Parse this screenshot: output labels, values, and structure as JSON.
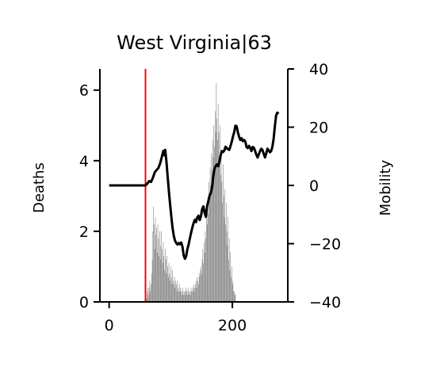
{
  "chart_data": {
    "type": "bar+line",
    "title": "West Virginia|63",
    "x": {
      "label": "",
      "range": [
        -15,
        290
      ],
      "ticks": [
        0,
        200
      ]
    },
    "y_left": {
      "label": "Deaths",
      "range": [
        0,
        6.6
      ],
      "ticks": [
        0,
        2,
        4,
        6
      ]
    },
    "y_right": {
      "label": "Mobility",
      "range": [
        -40,
        40
      ],
      "ticks": [
        -40,
        -20,
        0,
        20,
        40
      ]
    },
    "vline": {
      "x": 59,
      "color": "#ff0000"
    },
    "deaths": {
      "color": "#808080",
      "x_start": 45,
      "values": [
        0,
        0,
        0,
        0,
        0,
        0,
        0,
        0,
        0,
        0,
        0,
        0,
        0,
        0,
        0.1,
        0.2,
        0.1,
        0.3,
        0.4,
        0.2,
        0.4,
        0.6,
        0.3,
        0.5,
        0.8,
        1.2,
        2.0,
        2.7,
        2.2,
        1.5,
        2.4,
        1.9,
        2.1,
        1.4,
        2.2,
        1.8,
        1.3,
        2.0,
        1.6,
        1.2,
        2.0,
        1.5,
        1.1,
        1.7,
        1.3,
        0.9,
        1.5,
        1.2,
        0.8,
        1.3,
        1.0,
        0.7,
        1.1,
        0.8,
        0.6,
        1.0,
        0.7,
        0.5,
        0.9,
        0.6,
        0.5,
        0.7,
        0.4,
        0.6,
        0.5,
        0.3,
        0.6,
        0.4,
        0.3,
        0.5,
        0.3,
        0.4,
        0.3,
        0.2,
        0.4,
        0.3,
        0.2,
        0.3,
        0.2,
        0.3,
        0.4,
        0.3,
        0.2,
        0.4,
        0.3,
        0.2,
        0.3,
        0.2,
        0.4,
        0.3,
        0.3,
        0.4,
        0.5,
        0.3,
        0.4,
        0.5,
        0.6,
        0.4,
        0.7,
        0.6,
        0.5,
        0.8,
        0.7,
        0.9,
        1.0,
        0.8,
        1.2,
        1.5,
        1.1,
        1.7,
        1.4,
        2.0,
        1.8,
        2.4,
        2.2,
        2.8,
        2.5,
        3.4,
        2.9,
        3.8,
        3.3,
        4.2,
        3.7,
        4.6,
        4.1,
        5.0,
        4.4,
        5.4,
        4.8,
        6.2,
        5.2,
        4.6,
        5.6,
        4.8,
        4.0,
        5.0,
        3.6,
        4.2,
        3.4,
        2.8,
        3.9,
        3.0,
        2.4,
        3.2,
        2.2,
        2.8,
        2.0,
        1.6,
        2.4,
        1.2,
        1.8,
        0.9,
        1.4,
        0.7,
        1.0,
        0.5,
        0.6,
        0.3,
        0.3,
        0.2,
        0.2
      ]
    },
    "mobility": {
      "color": "#000000",
      "points": [
        [
          0,
          0
        ],
        [
          59,
          0
        ],
        [
          62,
          0.6
        ],
        [
          65,
          1.5
        ],
        [
          68,
          1.2
        ],
        [
          71,
          2.6
        ],
        [
          74,
          4.5
        ],
        [
          77,
          5.3
        ],
        [
          80,
          6.0
        ],
        [
          83,
          7.7
        ],
        [
          86,
          10.2
        ],
        [
          88,
          11.9
        ],
        [
          90,
          10.3
        ],
        [
          91,
          12.2
        ],
        [
          93,
          8.2
        ],
        [
          95,
          3.0
        ],
        [
          97,
          -2.1
        ],
        [
          99,
          -6.6
        ],
        [
          101,
          -10.8
        ],
        [
          103,
          -14.7
        ],
        [
          105,
          -17.4
        ],
        [
          107,
          -19.0
        ],
        [
          109,
          -19.8
        ],
        [
          111,
          -20.3
        ],
        [
          113,
          -19.8
        ],
        [
          115,
          -20.2
        ],
        [
          117,
          -19.6
        ],
        [
          119,
          -21.0
        ],
        [
          121,
          -24.0
        ],
        [
          123,
          -25.2
        ],
        [
          125,
          -24.3
        ],
        [
          127,
          -21.9
        ],
        [
          129,
          -20.3
        ],
        [
          131,
          -18.2
        ],
        [
          133,
          -16.3
        ],
        [
          135,
          -14.5
        ],
        [
          137,
          -13.0
        ],
        [
          139,
          -11.8
        ],
        [
          141,
          -12.6
        ],
        [
          143,
          -11.0
        ],
        [
          145,
          -10.4
        ],
        [
          147,
          -11.9
        ],
        [
          149,
          -10.6
        ],
        [
          151,
          -8.1
        ],
        [
          153,
          -7.2
        ],
        [
          155,
          -9.4
        ],
        [
          157,
          -10.8
        ],
        [
          159,
          -7.1
        ],
        [
          161,
          -5.4
        ],
        [
          163,
          -3.5
        ],
        [
          165,
          -2.6
        ],
        [
          167,
          -0.8
        ],
        [
          169,
          3.1
        ],
        [
          171,
          5.7
        ],
        [
          173,
          6.7
        ],
        [
          175,
          7.2
        ],
        [
          177,
          6.6
        ],
        [
          179,
          8.1
        ],
        [
          181,
          10.3
        ],
        [
          183,
          11.8
        ],
        [
          185,
          11.5
        ],
        [
          187,
          12.0
        ],
        [
          189,
          13.3
        ],
        [
          191,
          12.8
        ],
        [
          193,
          12.4
        ],
        [
          195,
          12.2
        ],
        [
          197,
          13.5
        ],
        [
          199,
          15.0
        ],
        [
          201,
          16.8
        ],
        [
          203,
          18.3
        ],
        [
          205,
          20.5
        ],
        [
          207,
          20.3
        ],
        [
          209,
          18.2
        ],
        [
          211,
          16.7
        ],
        [
          213,
          15.6
        ],
        [
          215,
          16.2
        ],
        [
          217,
          15.2
        ],
        [
          219,
          15.6
        ],
        [
          221,
          15.1
        ],
        [
          223,
          13.2
        ],
        [
          225,
          12.8
        ],
        [
          227,
          13.6
        ],
        [
          229,
          12.9
        ],
        [
          231,
          11.8
        ],
        [
          233,
          13.2
        ],
        [
          235,
          12.9
        ],
        [
          237,
          11.8
        ],
        [
          239,
          10.5
        ],
        [
          241,
          9.6
        ],
        [
          243,
          10.7
        ],
        [
          245,
          11.8
        ],
        [
          247,
          12.6
        ],
        [
          249,
          12.1
        ],
        [
          251,
          10.8
        ],
        [
          253,
          9.6
        ],
        [
          255,
          11.0
        ],
        [
          257,
          12.6
        ],
        [
          259,
          12.0
        ],
        [
          261,
          11.4
        ],
        [
          263,
          11.8
        ],
        [
          265,
          13.3
        ],
        [
          267,
          16.0
        ],
        [
          269,
          20.3
        ],
        [
          271,
          24.0
        ],
        [
          273,
          25.0
        ],
        [
          275,
          24.6
        ]
      ]
    }
  }
}
